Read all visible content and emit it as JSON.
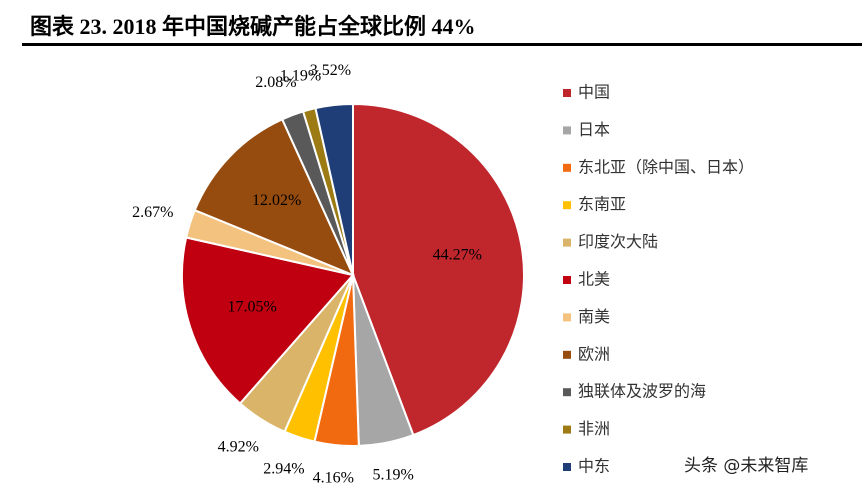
{
  "chart_data": {
    "type": "pie",
    "title": "图表 23. 2018 年中国烧碱产能占全球比例 44%",
    "categories": [
      "中国",
      "日本",
      "东北亚（除中国、日本）",
      "东南亚",
      "印度次大陆",
      "北美",
      "南美",
      "欧洲",
      "独联体及波罗的海",
      "非洲",
      "中东"
    ],
    "values": [
      44.27,
      5.19,
      4.16,
      2.94,
      4.92,
      17.05,
      2.67,
      12.02,
      2.08,
      1.19,
      3.52
    ],
    "value_labels": [
      "44.27%",
      "5.19%",
      "4.16%",
      "2.94%",
      "4.92%",
      "17.05%",
      "2.67%",
      "12.02%",
      "2.08%",
      "1.19%",
      "3.52%"
    ],
    "colors": [
      "#c0272d",
      "#a6a6a6",
      "#f26a10",
      "#ffc000",
      "#d9b469",
      "#c00010",
      "#f3c27e",
      "#974c0f",
      "#595959",
      "#9c7b14",
      "#1f3e78"
    ],
    "legend": "right",
    "watermark": "头条 @未来智库"
  }
}
